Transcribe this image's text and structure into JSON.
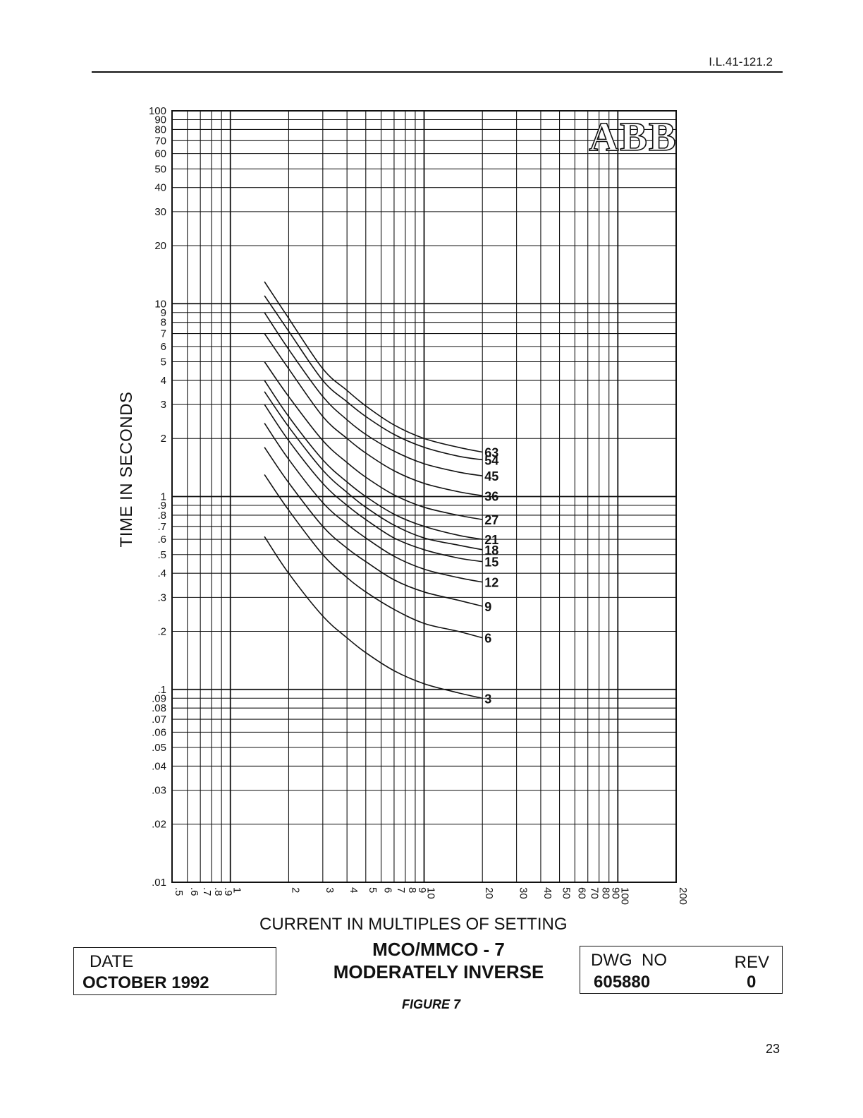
{
  "header": {
    "doc_id": "I.L.41-121.2"
  },
  "logo": {
    "text": "ABB"
  },
  "chart_data": {
    "type": "line",
    "xlabel": "CURRENT IN MULTIPLES OF SETTING",
    "ylabel": "TIME IN SECONDS",
    "x_scale": "log",
    "y_scale": "log",
    "xlim": [
      0.5,
      200
    ],
    "ylim": [
      0.01,
      100
    ],
    "grid": true,
    "x_ticks": [
      {
        "value": 0.5,
        "label": ".5"
      },
      {
        "value": 0.6,
        "label": ".6"
      },
      {
        "value": 0.7,
        "label": ".7"
      },
      {
        "value": 0.8,
        "label": ".8"
      },
      {
        "value": 0.9,
        "label": ".9"
      },
      {
        "value": 1,
        "label": "1"
      },
      {
        "value": 2,
        "label": "2"
      },
      {
        "value": 3,
        "label": "3"
      },
      {
        "value": 4,
        "label": "4"
      },
      {
        "value": 5,
        "label": "5"
      },
      {
        "value": 6,
        "label": "6"
      },
      {
        "value": 7,
        "label": "7"
      },
      {
        "value": 8,
        "label": "8"
      },
      {
        "value": 9,
        "label": "9"
      },
      {
        "value": 10,
        "label": "10"
      },
      {
        "value": 20,
        "label": "20"
      },
      {
        "value": 30,
        "label": "30"
      },
      {
        "value": 40,
        "label": "40"
      },
      {
        "value": 50,
        "label": "50"
      },
      {
        "value": 60,
        "label": "60"
      },
      {
        "value": 70,
        "label": "70"
      },
      {
        "value": 80,
        "label": "80"
      },
      {
        "value": 90,
        "label": "90"
      },
      {
        "value": 100,
        "label": "100"
      },
      {
        "value": 200,
        "label": "200"
      }
    ],
    "y_ticks": [
      {
        "value": 100,
        "label": "100"
      },
      {
        "value": 90,
        "label": "90"
      },
      {
        "value": 80,
        "label": "80"
      },
      {
        "value": 70,
        "label": "70"
      },
      {
        "value": 60,
        "label": "60"
      },
      {
        "value": 50,
        "label": "50"
      },
      {
        "value": 40,
        "label": "40"
      },
      {
        "value": 30,
        "label": "30"
      },
      {
        "value": 20,
        "label": "20"
      },
      {
        "value": 10,
        "label": "10"
      },
      {
        "value": 9,
        "label": "9"
      },
      {
        "value": 8,
        "label": "8"
      },
      {
        "value": 7,
        "label": "7"
      },
      {
        "value": 6,
        "label": "6"
      },
      {
        "value": 5,
        "label": "5"
      },
      {
        "value": 4,
        "label": "4"
      },
      {
        "value": 3,
        "label": "3"
      },
      {
        "value": 2,
        "label": "2"
      },
      {
        "value": 1,
        "label": "1"
      },
      {
        "value": 0.9,
        "label": ".9"
      },
      {
        "value": 0.8,
        "label": ".8"
      },
      {
        "value": 0.7,
        "label": ".7"
      },
      {
        "value": 0.6,
        "label": ".6"
      },
      {
        "value": 0.5,
        "label": ".5"
      },
      {
        "value": 0.4,
        "label": ".4"
      },
      {
        "value": 0.3,
        "label": ".3"
      },
      {
        "value": 0.2,
        "label": ".2"
      },
      {
        "value": 0.1,
        "label": ".1"
      },
      {
        "value": 0.09,
        "label": ".09"
      },
      {
        "value": 0.08,
        "label": ".08"
      },
      {
        "value": 0.07,
        "label": ".07"
      },
      {
        "value": 0.06,
        "label": ".06"
      },
      {
        "value": 0.05,
        "label": ".05"
      },
      {
        "value": 0.04,
        "label": ".04"
      },
      {
        "value": 0.03,
        "label": ".03"
      },
      {
        "value": 0.02,
        "label": ".02"
      },
      {
        "value": 0.01,
        "label": ".01"
      }
    ],
    "series": [
      {
        "name": "63",
        "x": [
          1.5,
          2,
          3,
          4,
          5,
          7,
          10,
          15,
          20
        ],
        "y": [
          13.0,
          8.4,
          4.6,
          3.55,
          2.95,
          2.35,
          2.0,
          1.8,
          1.7
        ]
      },
      {
        "name": "54",
        "x": [
          1.5,
          2,
          3,
          4,
          5,
          7,
          10,
          15,
          20
        ],
        "y": [
          11.0,
          7.2,
          4.0,
          3.1,
          2.6,
          2.1,
          1.8,
          1.62,
          1.55
        ]
      },
      {
        "name": "45",
        "x": [
          1.5,
          2,
          3,
          4,
          5,
          7,
          10,
          15,
          20
        ],
        "y": [
          9.0,
          5.8,
          3.3,
          2.5,
          2.1,
          1.72,
          1.48,
          1.34,
          1.28
        ]
      },
      {
        "name": "36",
        "x": [
          1.5,
          2,
          3,
          4,
          5,
          7,
          10,
          15,
          20
        ],
        "y": [
          7.0,
          4.6,
          2.6,
          2.0,
          1.68,
          1.36,
          1.17,
          1.06,
          1.01
        ]
      },
      {
        "name": "27",
        "x": [
          1.5,
          2,
          3,
          4,
          5,
          7,
          10,
          15,
          20
        ],
        "y": [
          5.0,
          3.3,
          1.95,
          1.5,
          1.26,
          1.02,
          0.88,
          0.8,
          0.76
        ]
      },
      {
        "name": "21",
        "x": [
          1.5,
          2,
          3,
          4,
          5,
          7,
          10,
          15,
          20
        ],
        "y": [
          4.0,
          2.6,
          1.55,
          1.19,
          1.0,
          0.81,
          0.7,
          0.63,
          0.6
        ]
      },
      {
        "name": "18",
        "x": [
          1.5,
          2,
          3,
          4,
          5,
          7,
          10,
          15,
          20
        ],
        "y": [
          3.5,
          2.3,
          1.37,
          1.05,
          0.88,
          0.71,
          0.61,
          0.56,
          0.53
        ]
      },
      {
        "name": "15",
        "x": [
          1.5,
          2,
          3,
          4,
          5,
          7,
          10,
          15,
          20
        ],
        "y": [
          3.0,
          1.95,
          1.17,
          0.9,
          0.76,
          0.61,
          0.53,
          0.48,
          0.46
        ]
      },
      {
        "name": "12",
        "x": [
          1.5,
          2,
          3,
          4,
          5,
          7,
          10,
          15,
          20
        ],
        "y": [
          2.4,
          1.56,
          0.93,
          0.72,
          0.61,
          0.49,
          0.42,
          0.38,
          0.36
        ]
      },
      {
        "name": "9",
        "x": [
          1.5,
          2,
          3,
          4,
          5,
          7,
          10,
          15,
          20
        ],
        "y": [
          1.8,
          1.18,
          0.7,
          0.54,
          0.46,
          0.37,
          0.32,
          0.29,
          0.27
        ]
      },
      {
        "name": "6",
        "x": [
          1.5,
          2,
          3,
          4,
          5,
          7,
          10,
          15,
          20
        ],
        "y": [
          1.3,
          0.85,
          0.5,
          0.38,
          0.32,
          0.26,
          0.22,
          0.2,
          0.185
        ]
      },
      {
        "name": "3",
        "x": [
          1.5,
          2,
          3,
          4,
          5,
          7,
          10,
          15,
          20
        ],
        "y": [
          0.62,
          0.4,
          0.24,
          0.185,
          0.155,
          0.125,
          0.107,
          0.096,
          0.09
        ]
      }
    ]
  },
  "title_block": {
    "subtitle_line1": "MCO/MMCO - 7",
    "subtitle_line2": "MODERATELY INVERSE",
    "date_label": "DATE",
    "date_value": "OCTOBER 1992",
    "dwg_label": "DWG  NO",
    "dwg_value": "605880",
    "rev_label": "REV",
    "rev_value": "0",
    "figure_label": "FIGURE 7"
  },
  "footer": {
    "page_number": "23"
  }
}
